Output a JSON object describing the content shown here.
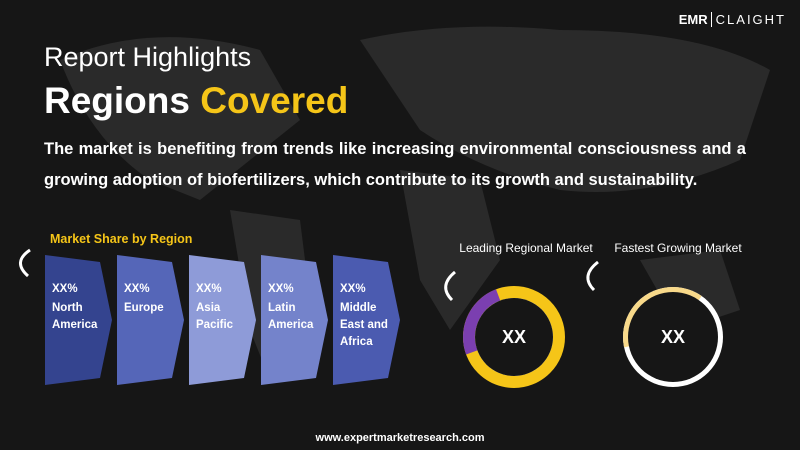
{
  "logo": {
    "left": "EMR",
    "right": "CLAIGHT"
  },
  "header": {
    "kicker": "Report Highlights",
    "title": "Regions",
    "title_accent": "Covered",
    "description": "The market is benefiting from trends like increasing environmental consciousness and a growing adoption of biofertilizers, which contribute to its growth and sustainability."
  },
  "market_share": {
    "label": "Market Share by Region",
    "regions": [
      {
        "value": "XX%",
        "name": "North America"
      },
      {
        "value": "XX%",
        "name": "Europe"
      },
      {
        "value": "XX%",
        "name": "Asia Pacific"
      },
      {
        "value": "XX%",
        "name": "Latin America"
      },
      {
        "value": "XX%",
        "name": "Middle East and Africa"
      }
    ]
  },
  "donuts": [
    {
      "label": "Leading Regional Market",
      "value": "XX"
    },
    {
      "label": "Fastest Growing Market",
      "value": "XX"
    }
  ],
  "footer": {
    "url": "www.expertmarketresearch.com"
  }
}
